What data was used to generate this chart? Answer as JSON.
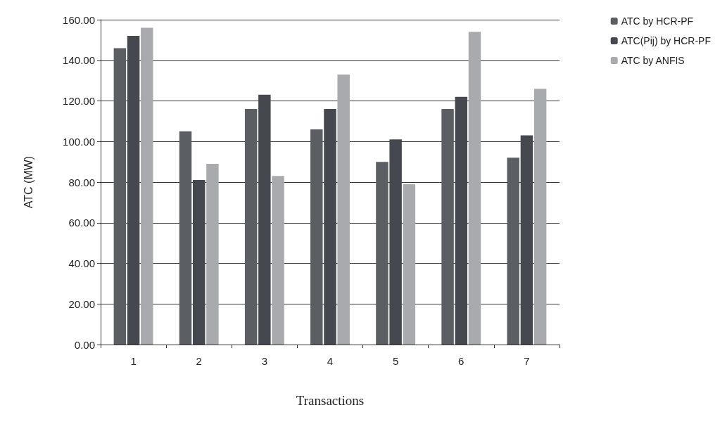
{
  "chart_data": {
    "type": "bar",
    "xlabel": "Transactions",
    "ylabel": "ATC (MW)",
    "categories": [
      "1",
      "2",
      "3",
      "4",
      "5",
      "6",
      "7"
    ],
    "series": [
      {
        "name": "ATC by HCR-PF",
        "color": "#5b5e63",
        "values": [
          146,
          105,
          116,
          106,
          90,
          116,
          92
        ]
      },
      {
        "name": "ATC(Pij) by HCR-PF",
        "color": "#45484e",
        "values": [
          152,
          81,
          123,
          116,
          101,
          122,
          103
        ]
      },
      {
        "name": "ATC by ANFIS",
        "color": "#a8aaad",
        "values": [
          156,
          89,
          83,
          133,
          79,
          154,
          126
        ]
      }
    ],
    "ylim": [
      0,
      160
    ],
    "yticks": [
      {
        "value": 0,
        "label": "0.00"
      },
      {
        "value": 20,
        "label": "20.00"
      },
      {
        "value": 40,
        "label": "40.00"
      },
      {
        "value": 60,
        "label": "60.00"
      },
      {
        "value": 80,
        "label": "80.00"
      },
      {
        "value": 100,
        "label": "100.00"
      },
      {
        "value": 120,
        "label": "120.00"
      },
      {
        "value": 140,
        "label": "140.00"
      },
      {
        "value": 160,
        "label": "160.00"
      }
    ],
    "grid": "y",
    "legend": "top right"
  }
}
